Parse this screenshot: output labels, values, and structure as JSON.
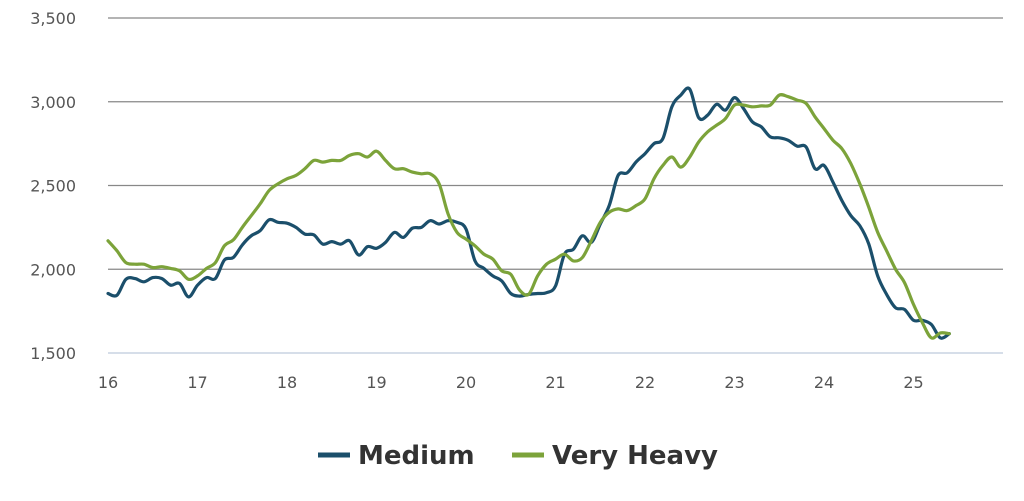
{
  "chart_data": {
    "type": "line",
    "xlim": [
      16,
      26
    ],
    "ylim": [
      1500,
      3500
    ],
    "x_ticks": [
      "16",
      "17",
      "18",
      "19",
      "20",
      "21",
      "22",
      "23",
      "24",
      "25"
    ],
    "y_ticks": [
      "1,500",
      "2,000",
      "2,500",
      "3,000",
      "3,500"
    ],
    "grid": "horizontal",
    "legend_position": "bottom-center",
    "series": [
      {
        "name": "Medium",
        "color": "#1b4f6b",
        "points": [
          [
            16.0,
            1855
          ],
          [
            16.1,
            1845
          ],
          [
            16.2,
            1940
          ],
          [
            16.3,
            1945
          ],
          [
            16.4,
            1925
          ],
          [
            16.5,
            1950
          ],
          [
            16.6,
            1945
          ],
          [
            16.7,
            1905
          ],
          [
            16.8,
            1915
          ],
          [
            16.9,
            1835
          ],
          [
            17.0,
            1905
          ],
          [
            17.1,
            1950
          ],
          [
            17.2,
            1945
          ],
          [
            17.3,
            2055
          ],
          [
            17.4,
            2070
          ],
          [
            17.5,
            2145
          ],
          [
            17.6,
            2200
          ],
          [
            17.7,
            2230
          ],
          [
            17.8,
            2295
          ],
          [
            17.9,
            2280
          ],
          [
            18.0,
            2275
          ],
          [
            18.1,
            2250
          ],
          [
            18.2,
            2210
          ],
          [
            18.3,
            2205
          ],
          [
            18.4,
            2150
          ],
          [
            18.5,
            2165
          ],
          [
            18.6,
            2150
          ],
          [
            18.7,
            2170
          ],
          [
            18.8,
            2085
          ],
          [
            18.9,
            2135
          ],
          [
            19.0,
            2125
          ],
          [
            19.1,
            2160
          ],
          [
            19.2,
            2220
          ],
          [
            19.3,
            2190
          ],
          [
            19.4,
            2245
          ],
          [
            19.5,
            2250
          ],
          [
            19.6,
            2290
          ],
          [
            19.7,
            2270
          ],
          [
            19.8,
            2290
          ],
          [
            19.9,
            2280
          ],
          [
            20.0,
            2240
          ],
          [
            20.1,
            2050
          ],
          [
            20.2,
            2005
          ],
          [
            20.3,
            1960
          ],
          [
            20.4,
            1930
          ],
          [
            20.5,
            1855
          ],
          [
            20.6,
            1840
          ],
          [
            20.7,
            1850
          ],
          [
            20.8,
            1855
          ],
          [
            20.9,
            1860
          ],
          [
            21.0,
            1900
          ],
          [
            21.1,
            2090
          ],
          [
            21.2,
            2120
          ],
          [
            21.3,
            2200
          ],
          [
            21.4,
            2160
          ],
          [
            21.5,
            2270
          ],
          [
            21.6,
            2380
          ],
          [
            21.7,
            2560
          ],
          [
            21.8,
            2575
          ],
          [
            21.9,
            2640
          ],
          [
            22.0,
            2690
          ],
          [
            22.1,
            2750
          ],
          [
            22.2,
            2780
          ],
          [
            22.3,
            2970
          ],
          [
            22.4,
            3040
          ],
          [
            22.5,
            3075
          ],
          [
            22.6,
            2905
          ],
          [
            22.7,
            2920
          ],
          [
            22.8,
            2985
          ],
          [
            22.9,
            2950
          ],
          [
            23.0,
            3025
          ],
          [
            23.1,
            2960
          ],
          [
            23.2,
            2880
          ],
          [
            23.3,
            2850
          ],
          [
            23.4,
            2790
          ],
          [
            23.5,
            2785
          ],
          [
            23.6,
            2770
          ],
          [
            23.7,
            2735
          ],
          [
            23.8,
            2730
          ],
          [
            23.9,
            2600
          ],
          [
            24.0,
            2620
          ],
          [
            24.1,
            2520
          ],
          [
            24.2,
            2410
          ],
          [
            24.3,
            2320
          ],
          [
            24.4,
            2260
          ],
          [
            24.5,
            2150
          ],
          [
            24.6,
            1960
          ],
          [
            24.7,
            1850
          ],
          [
            24.8,
            1770
          ],
          [
            24.9,
            1760
          ],
          [
            25.0,
            1695
          ],
          [
            25.1,
            1695
          ],
          [
            25.2,
            1670
          ],
          [
            25.3,
            1590
          ],
          [
            25.4,
            1615
          ]
        ]
      },
      {
        "name": "Very Heavy",
        "color": "#7ca33a",
        "points": [
          [
            16.0,
            2170
          ],
          [
            16.1,
            2110
          ],
          [
            16.2,
            2040
          ],
          [
            16.3,
            2030
          ],
          [
            16.4,
            2030
          ],
          [
            16.5,
            2010
          ],
          [
            16.6,
            2015
          ],
          [
            16.7,
            2005
          ],
          [
            16.8,
            1990
          ],
          [
            16.9,
            1940
          ],
          [
            17.0,
            1960
          ],
          [
            17.1,
            2005
          ],
          [
            17.2,
            2040
          ],
          [
            17.3,
            2140
          ],
          [
            17.4,
            2175
          ],
          [
            17.5,
            2250
          ],
          [
            17.6,
            2320
          ],
          [
            17.7,
            2390
          ],
          [
            17.8,
            2470
          ],
          [
            17.9,
            2510
          ],
          [
            18.0,
            2540
          ],
          [
            18.1,
            2560
          ],
          [
            18.2,
            2600
          ],
          [
            18.3,
            2650
          ],
          [
            18.4,
            2640
          ],
          [
            18.5,
            2650
          ],
          [
            18.6,
            2650
          ],
          [
            18.7,
            2680
          ],
          [
            18.8,
            2690
          ],
          [
            18.9,
            2670
          ],
          [
            19.0,
            2705
          ],
          [
            19.1,
            2650
          ],
          [
            19.2,
            2600
          ],
          [
            19.3,
            2600
          ],
          [
            19.4,
            2580
          ],
          [
            19.5,
            2570
          ],
          [
            19.6,
            2570
          ],
          [
            19.7,
            2510
          ],
          [
            19.8,
            2330
          ],
          [
            19.9,
            2220
          ],
          [
            20.0,
            2180
          ],
          [
            20.1,
            2140
          ],
          [
            20.2,
            2090
          ],
          [
            20.3,
            2060
          ],
          [
            20.4,
            1990
          ],
          [
            20.5,
            1970
          ],
          [
            20.6,
            1875
          ],
          [
            20.7,
            1850
          ],
          [
            20.8,
            1960
          ],
          [
            20.9,
            2030
          ],
          [
            21.0,
            2060
          ],
          [
            21.1,
            2090
          ],
          [
            21.2,
            2050
          ],
          [
            21.3,
            2070
          ],
          [
            21.4,
            2170
          ],
          [
            21.5,
            2280
          ],
          [
            21.6,
            2340
          ],
          [
            21.7,
            2360
          ],
          [
            21.8,
            2350
          ],
          [
            21.9,
            2380
          ],
          [
            22.0,
            2420
          ],
          [
            22.1,
            2540
          ],
          [
            22.2,
            2620
          ],
          [
            22.3,
            2670
          ],
          [
            22.4,
            2610
          ],
          [
            22.5,
            2670
          ],
          [
            22.6,
            2760
          ],
          [
            22.7,
            2820
          ],
          [
            22.8,
            2860
          ],
          [
            22.9,
            2900
          ],
          [
            23.0,
            2980
          ],
          [
            23.1,
            2980
          ],
          [
            23.2,
            2970
          ],
          [
            23.3,
            2975
          ],
          [
            23.4,
            2980
          ],
          [
            23.5,
            3040
          ],
          [
            23.6,
            3030
          ],
          [
            23.7,
            3010
          ],
          [
            23.8,
            2990
          ],
          [
            23.9,
            2910
          ],
          [
            24.0,
            2840
          ],
          [
            24.1,
            2770
          ],
          [
            24.2,
            2720
          ],
          [
            24.3,
            2630
          ],
          [
            24.4,
            2510
          ],
          [
            24.5,
            2370
          ],
          [
            24.6,
            2220
          ],
          [
            24.7,
            2110
          ],
          [
            24.8,
            2000
          ],
          [
            24.9,
            1920
          ],
          [
            25.0,
            1790
          ],
          [
            25.1,
            1680
          ],
          [
            25.2,
            1590
          ],
          [
            25.3,
            1620
          ],
          [
            25.4,
            1615
          ]
        ]
      }
    ]
  }
}
